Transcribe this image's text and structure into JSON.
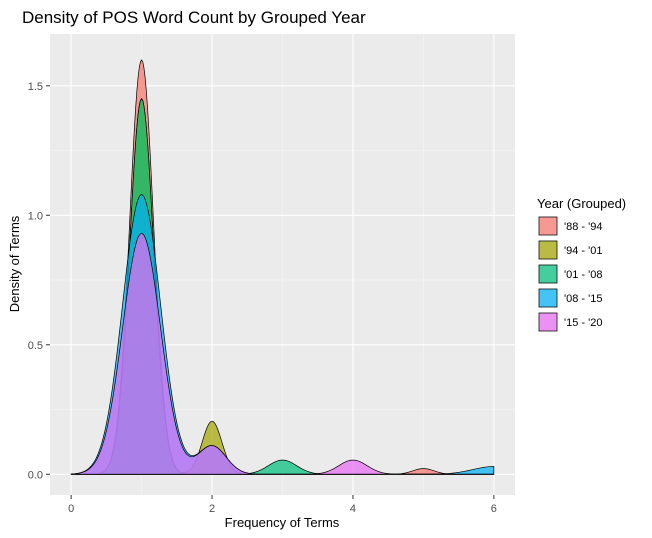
{
  "chart_data": {
    "type": "area",
    "title": "Density of POS Word Count by Grouped Year",
    "xlabel": "Frequency of Terms",
    "ylabel": "Density of Terms",
    "xlim": [
      -0.3,
      6.3
    ],
    "ylim": [
      -0.08,
      1.7
    ],
    "x_ticks": [
      0,
      2,
      4,
      6
    ],
    "x_tick_labels": [
      "0",
      "2",
      "4",
      "6"
    ],
    "y_ticks": [
      0.0,
      0.5,
      1.0,
      1.5
    ],
    "y_tick_labels": [
      "0.0",
      "0.5",
      "1.0",
      "1.5"
    ],
    "grid": true,
    "legend": {
      "title": "Year (Grouped)",
      "position": "right"
    },
    "series": [
      {
        "name": "'88 - '94",
        "color": "#F8766D",
        "x_range": [
          0,
          6
        ],
        "peaks": [
          [
            1,
            1.6,
            0.17
          ],
          [
            5,
            0.022,
            0.15
          ]
        ]
      },
      {
        "name": "'94 - '01",
        "color": "#A3A500",
        "x_range": [
          0,
          6
        ],
        "peaks": [
          [
            1,
            1.45,
            0.17
          ],
          [
            2,
            0.205,
            0.14
          ]
        ]
      },
      {
        "name": "'01 - '08",
        "color": "#00BF7D",
        "x_range": [
          0,
          6
        ],
        "peaks": [
          [
            1,
            1.45,
            0.17
          ],
          [
            3,
            0.055,
            0.2
          ]
        ]
      },
      {
        "name": "'08 - '15",
        "color": "#00B0F6",
        "x_range": [
          0,
          6
        ],
        "peaks": [
          [
            1,
            1.08,
            0.27
          ],
          [
            2,
            0.11,
            0.2
          ],
          [
            6,
            0.03,
            0.3
          ]
        ]
      },
      {
        "name": "'15 - '20",
        "color": "#E76BF3",
        "x_range": [
          0,
          6
        ],
        "peaks": [
          [
            1,
            0.93,
            0.27
          ],
          [
            2,
            0.11,
            0.2
          ],
          [
            4,
            0.055,
            0.2
          ]
        ]
      }
    ]
  }
}
